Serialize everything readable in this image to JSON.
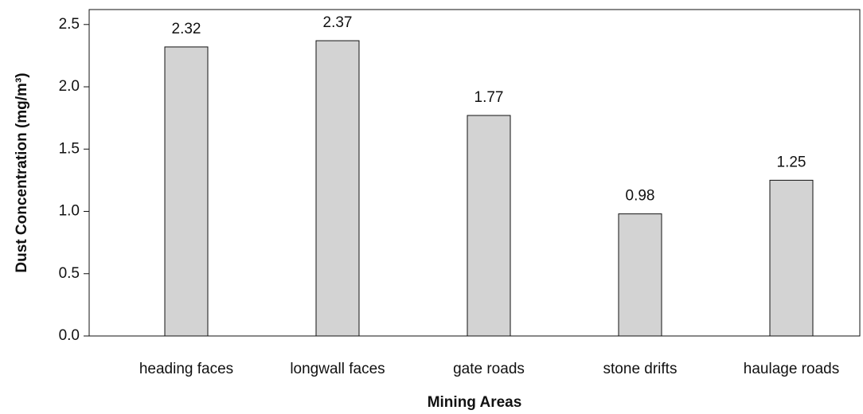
{
  "chart_data": {
    "type": "bar",
    "x_label": "Mining Areas",
    "y_label": "Dust Concentration (mg/m³)",
    "categories": [
      "heading faces",
      "longwall faces",
      "gate roads",
      "stone drifts",
      "haulage roads"
    ],
    "values": [
      2.32,
      2.37,
      1.77,
      0.98,
      1.25
    ],
    "color": "#d3d3d3",
    "ylim": [
      0,
      2.62
    ],
    "yticks": [
      {
        "value": 0,
        "label": "0.0"
      },
      0.5,
      {
        "value": 1,
        "label": "1.0"
      },
      1.5,
      {
        "value": 2,
        "label": "2.0"
      },
      2.5
    ]
  }
}
